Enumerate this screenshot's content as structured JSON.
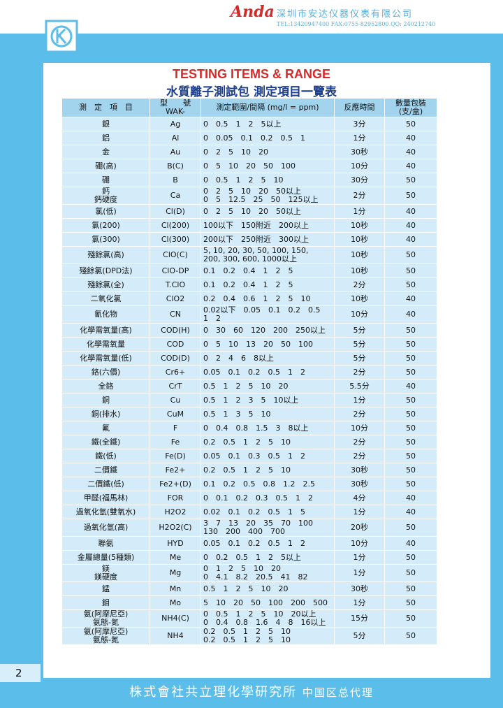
{
  "header": {
    "brand": "Anda",
    "company": "深圳市安达仪器仪表有限公司",
    "contact": "TEL:13420947400  FAX:0755-82952800  QQ:  240212740"
  },
  "title_en": "TESTING ITEMS & RANGE",
  "title_zh": "水質離子測試包 測定項目一覽表",
  "table": {
    "columns": [
      "測　定　項　目",
      [
        "型　　號",
        "WAK-"
      ],
      "測定範圍/間隔 (mg/l = ppm)",
      "反應時間",
      [
        "數量包裝",
        "(支/盒)"
      ]
    ],
    "rows": [
      [
        [
          "銀"
        ],
        "Ag",
        [
          "0　0.5　1　2　5以上"
        ],
        "3分",
        "50"
      ],
      [
        [
          "鋁"
        ],
        "Al",
        [
          "0　0.05　0.1　0.2　0.5　1"
        ],
        "1分",
        "40"
      ],
      [
        [
          "金"
        ],
        "Au",
        [
          "0　2　5　10　20"
        ],
        "30秒",
        "40"
      ],
      [
        [
          "硼(高)"
        ],
        "B(C)",
        [
          "0　5　10　20　50　100"
        ],
        "10分",
        "40"
      ],
      [
        [
          "硼"
        ],
        "B",
        [
          "0　0.5　1　2　5　10"
        ],
        "30分",
        "50"
      ],
      [
        [
          "鈣",
          "鈣硬度"
        ],
        "Ca",
        [
          "0　2　5　10　20　50以上",
          "0　5　12.5　25　50　125以上"
        ],
        "2分",
        "50"
      ],
      [
        [
          "氯(低)"
        ],
        "Cl(D)",
        [
          "0　2　5　10　20　50以上"
        ],
        "1分",
        "40"
      ],
      [
        [
          "氯(200)"
        ],
        "Cl(200)",
        [
          "100以下　150附近　200以上"
        ],
        "10秒",
        "40"
      ],
      [
        [
          "氯(300)"
        ],
        "Cl(300)",
        [
          "200以下　250附近　300以上"
        ],
        "10秒",
        "40"
      ],
      [
        [
          "殘餘氯(高)"
        ],
        "ClO(C)",
        [
          "5, 10, 20, 30, 50, 100, 150,",
          "200, 300, 600, 1000以上"
        ],
        "10秒",
        "50"
      ],
      [
        [
          "殘餘氯(DPD法)"
        ],
        "ClO-DP",
        [
          "0.1　0.2　0.4　1　2　5"
        ],
        "10秒",
        "50"
      ],
      [
        [
          "殘餘氯(全)"
        ],
        "T.ClO",
        [
          "0.1　0.2　0.4　1　2　5"
        ],
        "2分",
        "50"
      ],
      [
        [
          "二氧化氯"
        ],
        "ClO2",
        [
          "0.2　0.4　0.6　1　2　5　10"
        ],
        "10秒",
        "40"
      ],
      [
        [
          "氰化物"
        ],
        "CN",
        [
          "0.02以下　0.05　0.1　0.2　0.5　1　2"
        ],
        "10分",
        "40"
      ],
      [
        [
          "化學需氧量(高)"
        ],
        "COD(H)",
        [
          "0　30　60　120　200　250以上"
        ],
        "5分",
        "50"
      ],
      [
        [
          "化學需氧量"
        ],
        "COD",
        [
          "0　5　10　13　20　50　100"
        ],
        "5分",
        "50"
      ],
      [
        [
          "化學需氧量(低)"
        ],
        "COD(D)",
        [
          "0　2　4　6　8以上"
        ],
        "5分",
        "50"
      ],
      [
        [
          "鉻(六價)"
        ],
        "Cr6+",
        [
          "0.05　0.1　0.2　0.5　1　2"
        ],
        "2分",
        "50"
      ],
      [
        [
          "全鉻"
        ],
        "CrT",
        [
          "0.5　1　2　5　10　20"
        ],
        "5.5分",
        "40"
      ],
      [
        [
          "銅"
        ],
        "Cu",
        [
          "0.5　1　2　3　5　10以上"
        ],
        "1分",
        "50"
      ],
      [
        [
          "銅(排水)"
        ],
        "CuM",
        [
          "0.5　1　3　5　10"
        ],
        "2分",
        "50"
      ],
      [
        [
          "氟"
        ],
        "F",
        [
          "0　0.4　0.8　1.5　3　8以上"
        ],
        "10分",
        "50"
      ],
      [
        [
          "鐵(全鐵)"
        ],
        "Fe",
        [
          "0.2　0.5　1　2　5　10"
        ],
        "2分",
        "50"
      ],
      [
        [
          "鐵(低)"
        ],
        "Fe(D)",
        [
          "0.05　0.1　0.3　0.5　1　2"
        ],
        "2分",
        "50"
      ],
      [
        [
          "二價鐵"
        ],
        "Fe2+",
        [
          "0.2　0.5　1　2　5　10"
        ],
        "30秒",
        "50"
      ],
      [
        [
          "二價鐵(低)"
        ],
        "Fe2+(D)",
        [
          "0.1　0.2　0.5　0.8　1.2　2.5"
        ],
        "30秒",
        "50"
      ],
      [
        [
          "甲醛(福馬林)"
        ],
        "FOR",
        [
          "0　0.1　0.2　0.3　0.5　1　2"
        ],
        "4分",
        "40"
      ],
      [
        [
          "過氧化氫(雙氧水)"
        ],
        "H2O2",
        [
          "0.02　0.1　0.2　0.5　1　5"
        ],
        "1分",
        "40"
      ],
      [
        [
          "過氧化氫(高)"
        ],
        "H2O2(C)",
        [
          "3　7　13　20　35　70　100",
          "130　200　400　700"
        ],
        "20秒",
        "50"
      ],
      [
        [
          "聯氨"
        ],
        "HYD",
        [
          "0.05　0.1　0.2　0.5　1　2"
        ],
        "10分",
        "40"
      ],
      [
        [
          "金屬總量(5種類)"
        ],
        "Me",
        [
          "0　0.2　0.5　1　2　5以上"
        ],
        "1分",
        "50"
      ],
      [
        [
          "鎂",
          "鎂硬度"
        ],
        "Mg",
        [
          "0　1　2　5　10　20",
          "0　4.1　8.2　20.5　41　82"
        ],
        "1分",
        "50"
      ],
      [
        [
          "錳"
        ],
        "Mn",
        [
          "0.5　1　2　5　10　20"
        ],
        "30秒",
        "50"
      ],
      [
        [
          "鉬"
        ],
        "Mo",
        [
          "5　10　20　50　100　200　500"
        ],
        "1分",
        "50"
      ],
      [
        [
          "氨(阿摩尼亞)",
          "氨態-氮"
        ],
        "NH4(C)",
        [
          "0　0.5　1　2　5　10　20以上",
          "0　0.4　0.8　1.6　4　8　16以上"
        ],
        "15分",
        "50"
      ],
      [
        [
          "氨(阿摩尼亞)",
          "氨態-氮"
        ],
        "NH4",
        [
          "0.2　0.5　1　2　5　10",
          "0.2　0.5　1　2　5　10"
        ],
        "5分",
        "50"
      ]
    ]
  },
  "footer": {
    "page": "2",
    "company": "株式會社共立理化學研究所",
    "agent": "中国区总代理"
  }
}
